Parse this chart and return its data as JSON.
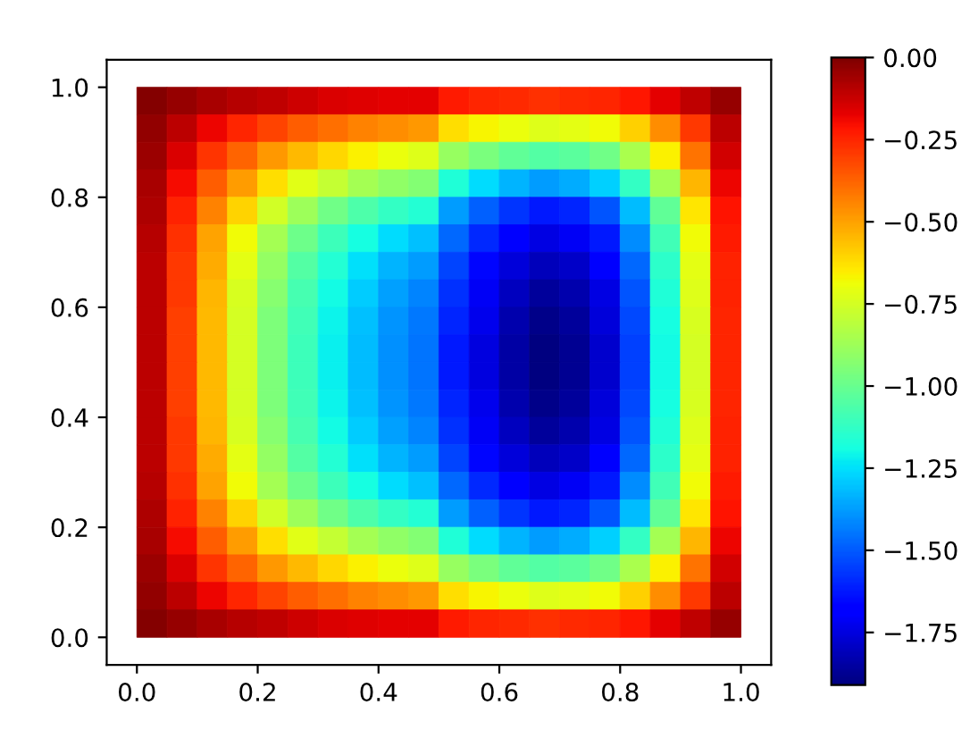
{
  "chart_data": {
    "type": "heatmap",
    "x": [
      0.025,
      0.075,
      0.125,
      0.175,
      0.225,
      0.275,
      0.325,
      0.375,
      0.425,
      0.475,
      0.525,
      0.575,
      0.625,
      0.675,
      0.725,
      0.775,
      0.825,
      0.875,
      0.925,
      0.975
    ],
    "y": [
      0.975,
      0.925,
      0.875,
      0.825,
      0.775,
      0.725,
      0.675,
      0.625,
      0.575,
      0.525,
      0.475,
      0.425,
      0.375,
      0.325,
      0.275,
      0.225,
      0.175,
      0.125,
      0.075,
      0.025
    ],
    "cells": [
      [
        -0.01,
        -0.04,
        -0.07,
        -0.09,
        -0.11,
        -0.13,
        -0.15,
        -0.16,
        -0.17,
        -0.17,
        -0.23,
        -0.25,
        -0.26,
        -0.27,
        -0.26,
        -0.25,
        -0.22,
        -0.17,
        -0.11,
        -0.04
      ],
      [
        -0.03,
        -0.1,
        -0.18,
        -0.25,
        -0.31,
        -0.36,
        -0.4,
        -0.44,
        -0.46,
        -0.48,
        -0.62,
        -0.67,
        -0.7,
        -0.73,
        -0.71,
        -0.68,
        -0.59,
        -0.46,
        -0.29,
        -0.1
      ],
      [
        -0.05,
        -0.15,
        -0.28,
        -0.38,
        -0.48,
        -0.55,
        -0.61,
        -0.66,
        -0.7,
        -0.73,
        -0.89,
        -0.96,
        -1.02,
        -1.05,
        -1.03,
        -0.98,
        -0.85,
        -0.66,
        -0.41,
        -0.14
      ],
      [
        -0.07,
        -0.2,
        -0.36,
        -0.49,
        -0.62,
        -0.72,
        -0.79,
        -0.86,
        -0.91,
        -0.94,
        -1.17,
        -1.26,
        -1.33,
        -1.38,
        -1.35,
        -1.28,
        -1.12,
        -0.86,
        -0.54,
        -0.18
      ],
      [
        -0.08,
        -0.24,
        -0.44,
        -0.6,
        -0.76,
        -0.88,
        -0.98,
        -1.06,
        -1.12,
        -1.16,
        -1.38,
        -1.49,
        -1.57,
        -1.62,
        -1.6,
        -1.51,
        -1.32,
        -1.02,
        -0.64,
        -0.21
      ],
      [
        -0.09,
        -0.27,
        -0.5,
        -0.68,
        -0.86,
        -0.99,
        -1.1,
        -1.19,
        -1.26,
        -1.31,
        -1.47,
        -1.59,
        -1.68,
        -1.74,
        -1.71,
        -1.62,
        -1.41,
        -1.09,
        -0.68,
        -0.23
      ],
      [
        -0.1,
        -0.29,
        -0.52,
        -0.71,
        -0.9,
        -1.05,
        -1.16,
        -1.25,
        -1.33,
        -1.38,
        -1.54,
        -1.66,
        -1.76,
        -1.81,
        -1.79,
        -1.69,
        -1.47,
        -1.14,
        -0.71,
        -0.24
      ],
      [
        -0.1,
        -0.29,
        -0.54,
        -0.74,
        -0.93,
        -1.08,
        -1.2,
        -1.29,
        -1.37,
        -1.42,
        -1.58,
        -1.71,
        -1.8,
        -1.86,
        -1.83,
        -1.74,
        -1.51,
        -1.17,
        -0.73,
        -0.24
      ],
      [
        -0.1,
        -0.3,
        -0.55,
        -0.75,
        -0.95,
        -1.09,
        -1.21,
        -1.31,
        -1.39,
        -1.44,
        -1.6,
        -1.73,
        -1.83,
        -1.89,
        -1.86,
        -1.76,
        -1.53,
        -1.19,
        -0.74,
        -0.25
      ],
      [
        -0.1,
        -0.3,
        -0.55,
        -0.75,
        -0.95,
        -1.1,
        -1.22,
        -1.32,
        -1.4,
        -1.45,
        -1.62,
        -1.75,
        -1.85,
        -1.91,
        -1.88,
        -1.78,
        -1.55,
        -1.2,
        -0.75,
        -0.25
      ],
      [
        -0.1,
        -0.3,
        -0.55,
        -0.75,
        -0.95,
        -1.1,
        -1.22,
        -1.32,
        -1.4,
        -1.45,
        -1.62,
        -1.75,
        -1.85,
        -1.91,
        -1.88,
        -1.78,
        -1.55,
        -1.2,
        -0.75,
        -0.25
      ],
      [
        -0.1,
        -0.3,
        -0.55,
        -0.75,
        -0.95,
        -1.09,
        -1.21,
        -1.31,
        -1.39,
        -1.44,
        -1.6,
        -1.73,
        -1.83,
        -1.89,
        -1.86,
        -1.76,
        -1.53,
        -1.19,
        -0.74,
        -0.25
      ],
      [
        -0.1,
        -0.29,
        -0.54,
        -0.74,
        -0.93,
        -1.08,
        -1.2,
        -1.29,
        -1.37,
        -1.42,
        -1.58,
        -1.71,
        -1.8,
        -1.86,
        -1.83,
        -1.74,
        -1.51,
        -1.17,
        -0.73,
        -0.24
      ],
      [
        -0.1,
        -0.29,
        -0.52,
        -0.71,
        -0.9,
        -1.05,
        -1.16,
        -1.25,
        -1.33,
        -1.38,
        -1.54,
        -1.66,
        -1.76,
        -1.81,
        -1.79,
        -1.69,
        -1.47,
        -1.14,
        -0.71,
        -0.24
      ],
      [
        -0.09,
        -0.27,
        -0.5,
        -0.68,
        -0.86,
        -0.99,
        -1.1,
        -1.19,
        -1.26,
        -1.31,
        -1.47,
        -1.59,
        -1.68,
        -1.74,
        -1.71,
        -1.62,
        -1.41,
        -1.09,
        -0.68,
        -0.23
      ],
      [
        -0.08,
        -0.24,
        -0.44,
        -0.6,
        -0.76,
        -0.88,
        -0.98,
        -1.06,
        -1.12,
        -1.16,
        -1.38,
        -1.49,
        -1.57,
        -1.62,
        -1.6,
        -1.51,
        -1.32,
        -1.02,
        -0.64,
        -0.21
      ],
      [
        -0.07,
        -0.2,
        -0.36,
        -0.49,
        -0.62,
        -0.72,
        -0.79,
        -0.86,
        -0.91,
        -0.94,
        -1.17,
        -1.26,
        -1.33,
        -1.38,
        -1.35,
        -1.28,
        -1.12,
        -0.86,
        -0.54,
        -0.18
      ],
      [
        -0.05,
        -0.15,
        -0.28,
        -0.38,
        -0.48,
        -0.55,
        -0.61,
        -0.66,
        -0.7,
        -0.73,
        -0.89,
        -0.96,
        -1.02,
        -1.05,
        -1.03,
        -0.98,
        -0.85,
        -0.66,
        -0.41,
        -0.14
      ],
      [
        -0.03,
        -0.1,
        -0.18,
        -0.25,
        -0.31,
        -0.36,
        -0.4,
        -0.44,
        -0.46,
        -0.48,
        -0.62,
        -0.67,
        -0.7,
        -0.73,
        -0.71,
        -0.68,
        -0.59,
        -0.46,
        -0.29,
        -0.1
      ],
      [
        -0.01,
        -0.04,
        -0.07,
        -0.09,
        -0.11,
        -0.13,
        -0.15,
        -0.16,
        -0.17,
        -0.17,
        -0.23,
        -0.25,
        -0.26,
        -0.27,
        -0.26,
        -0.25,
        -0.22,
        -0.17,
        -0.11,
        -0.04
      ]
    ],
    "clim": [
      -1.91,
      0
    ],
    "cticks": [
      {
        "value": 0,
        "label": "0.00"
      },
      {
        "value": -0.25,
        "label": "−0.25"
      },
      {
        "value": -0.5,
        "label": "−0.50"
      },
      {
        "value": -0.75,
        "label": "−0.75"
      },
      {
        "value": -1.0,
        "label": "−1.00"
      },
      {
        "value": -1.25,
        "label": "−1.25"
      },
      {
        "value": -1.5,
        "label": "−1.50"
      },
      {
        "value": -1.75,
        "label": "−1.75"
      }
    ],
    "xlim": [
      -0.05,
      1.05
    ],
    "ylim": [
      -0.05,
      1.05
    ],
    "xticks": [
      {
        "value": 0,
        "label": "0.0"
      },
      {
        "value": 0.2,
        "label": "0.2"
      },
      {
        "value": 0.4,
        "label": "0.4"
      },
      {
        "value": 0.6,
        "label": "0.6"
      },
      {
        "value": 0.8,
        "label": "0.8"
      },
      {
        "value": 1,
        "label": "1.0"
      }
    ],
    "yticks": [
      {
        "value": 0,
        "label": "0.0"
      },
      {
        "value": 0.2,
        "label": "0.2"
      },
      {
        "value": 0.4,
        "label": "0.4"
      },
      {
        "value": 0.6,
        "label": "0.6"
      },
      {
        "value": 0.8,
        "label": "0.8"
      },
      {
        "value": 1,
        "label": "1.0"
      }
    ]
  }
}
